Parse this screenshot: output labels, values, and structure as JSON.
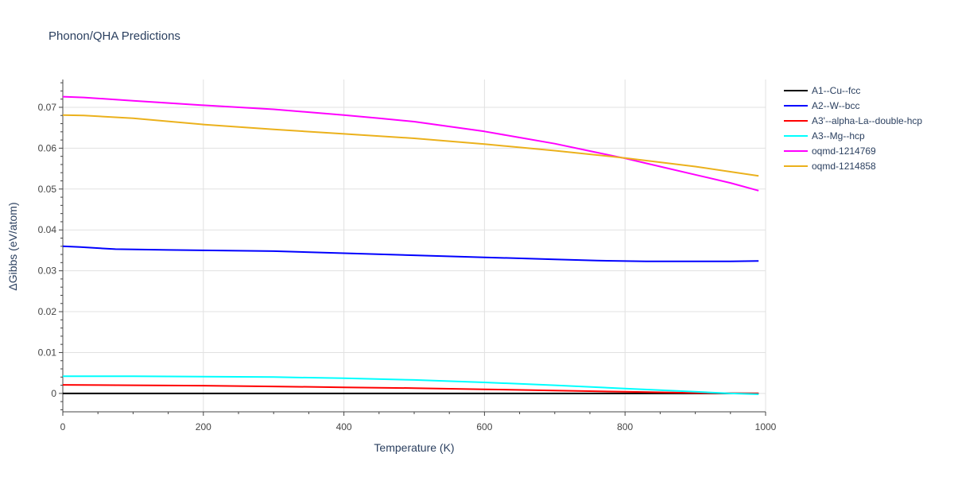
{
  "chart_data": {
    "type": "line",
    "title": "Phonon/QHA Predictions",
    "xlabel": "Temperature (K)",
    "ylabel": "ΔGibbs (eV/atom)",
    "xlim": [
      0,
      1000
    ],
    "ylim": [
      -0.0045,
      0.0768
    ],
    "x_ticks": [
      0,
      200,
      400,
      600,
      800,
      1000
    ],
    "x_tick_labels": [
      "0",
      "200",
      "400",
      "600",
      "800",
      "1000"
    ],
    "y_ticks": [
      0,
      0.01,
      0.02,
      0.03,
      0.04,
      0.05,
      0.06,
      0.07
    ],
    "y_tick_labels": [
      "0",
      "0.01",
      "0.02",
      "0.03",
      "0.04",
      "0.05",
      "0.06",
      "0.07"
    ],
    "grid": true,
    "legend_position": "right",
    "series": [
      {
        "name": "A1--Cu--fcc",
        "color": "#000000",
        "x": [
          0,
          100,
          200,
          300,
          400,
          500,
          600,
          700,
          800,
          900,
          990
        ],
        "y": [
          0,
          0,
          0,
          0,
          0,
          0,
          0,
          0,
          0,
          0,
          0
        ]
      },
      {
        "name": "A2--W--bcc",
        "color": "#0000ff",
        "x": [
          0,
          25,
          75,
          150,
          200,
          300,
          400,
          500,
          600,
          700,
          760,
          830,
          900,
          950,
          990
        ],
        "y": [
          0.036,
          0.0358,
          0.0353,
          0.0351,
          0.035,
          0.0348,
          0.0343,
          0.0338,
          0.0333,
          0.0328,
          0.0325,
          0.0323,
          0.0323,
          0.0323,
          0.0324
        ]
      },
      {
        "name": "A3'--alpha-La--double-hcp",
        "color": "#ff0000",
        "x": [
          0,
          100,
          200,
          300,
          400,
          500,
          600,
          700,
          800,
          900,
          990
        ],
        "y": [
          0.0021,
          0.002,
          0.0019,
          0.0017,
          0.0015,
          0.0013,
          0.001,
          0.0007,
          0.0004,
          0.0001,
          0
        ]
      },
      {
        "name": "A3--Mg--hcp",
        "color": "#00ffff",
        "x": [
          0,
          100,
          200,
          300,
          400,
          500,
          600,
          700,
          800,
          900,
          950,
          990
        ],
        "y": [
          0.0042,
          0.0042,
          0.0041,
          0.004,
          0.0037,
          0.0033,
          0.0027,
          0.002,
          0.0012,
          0.0004,
          0,
          -0.0002
        ]
      },
      {
        "name": "oqmd-1214769",
        "color": "#ff00ff",
        "x": [
          0,
          30,
          100,
          200,
          300,
          400,
          450,
          500,
          550,
          600,
          650,
          700,
          750,
          800,
          850,
          900,
          950,
          990
        ],
        "y": [
          0.0726,
          0.0724,
          0.0716,
          0.0705,
          0.0695,
          0.0681,
          0.0673,
          0.0665,
          0.0653,
          0.0641,
          0.0626,
          0.0611,
          0.0593,
          0.0575,
          0.0555,
          0.0535,
          0.0515,
          0.0496
        ]
      },
      {
        "name": "oqmd-1214858",
        "color": "#ebb11c",
        "x": [
          0,
          30,
          100,
          200,
          300,
          400,
          500,
          600,
          700,
          800,
          900,
          990
        ],
        "y": [
          0.0681,
          0.068,
          0.0673,
          0.0658,
          0.0646,
          0.0635,
          0.0624,
          0.061,
          0.0594,
          0.0576,
          0.0555,
          0.0532
        ]
      }
    ]
  }
}
